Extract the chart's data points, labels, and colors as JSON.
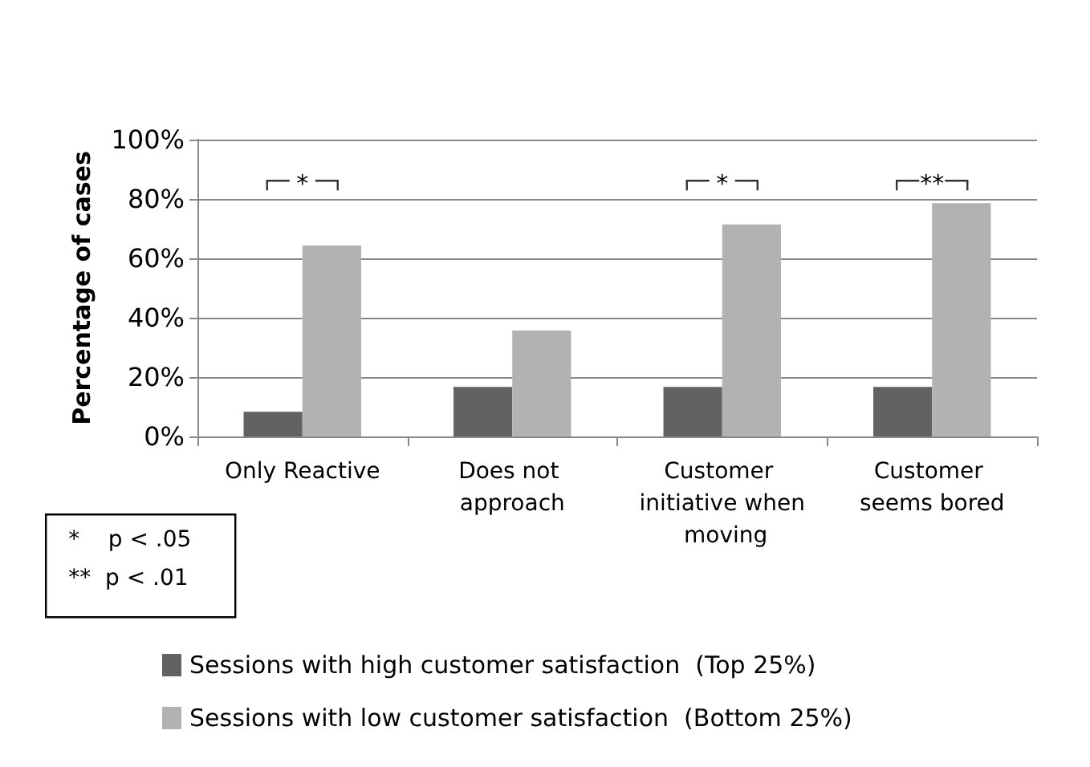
{
  "chart_data": {
    "type": "bar",
    "ylabel": "Percentage of cases",
    "categories": [
      "Only Reactive",
      "Does not approach",
      "Customer initiative when moving",
      "Customer seems bored"
    ],
    "series": [
      {
        "name": "Sessions with high customer satisfaction  (Top 25%)",
        "color": "#626262",
        "values": [
          8.3,
          16.7,
          16.7,
          16.7
        ]
      },
      {
        "name": "Sessions with low customer satisfaction  (Bottom 25%)",
        "color": "#b2b2b2",
        "values": [
          64.3,
          35.7,
          71.4,
          78.6
        ]
      }
    ],
    "ylim": [
      0,
      100
    ],
    "yticks": [
      {
        "value": 0,
        "label": "0%"
      },
      {
        "value": 20,
        "label": "20%"
      },
      {
        "value": 40,
        "label": "40%"
      },
      {
        "value": 60,
        "label": "60%"
      },
      {
        "value": 80,
        "label": "80%"
      },
      {
        "value": 100,
        "label": "100%"
      }
    ],
    "grid": "y",
    "legend": "bottom",
    "annotations": [
      {
        "text": "*",
        "x": "Only Reactive",
        "y": 64.3
      },
      {
        "text": "*",
        "x": "Customer initiative when moving",
        "y": 71.4
      },
      {
        "text": "**",
        "x": "Customer seems bored",
        "y": 78.6
      },
      "*    p < .05",
      "**  p < .01"
    ]
  }
}
